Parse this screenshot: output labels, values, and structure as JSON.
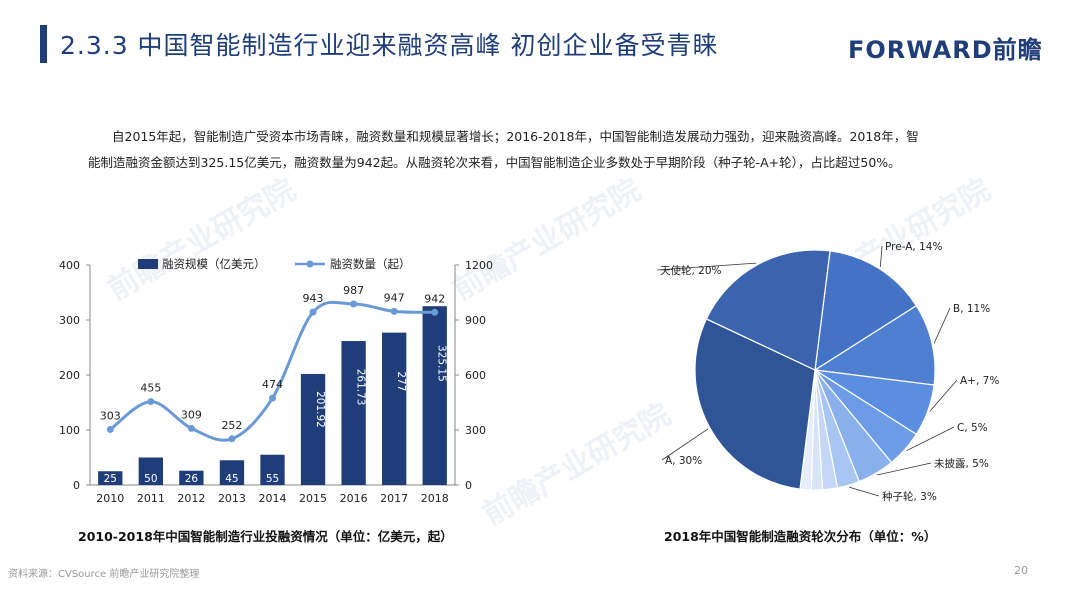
{
  "header": {
    "title": "2.3.3 中国智能制造行业迎来融资高峰 初创企业备受青睐",
    "logo": "FORWARD前瞻"
  },
  "intro": {
    "line1": "自2015年起，智能制造广受资本市场青睐，融资数量和规模显著增长；2016-2018年，中国智能制造发展动力强劲，迎来融资高峰。2018年，智",
    "line2": "能制造融资金额达到325.15亿美元，融资数量为942起。从融资轮次来看，中国智能制造企业多数处于早期阶段（种子轮-A+轮），占比超过50%。"
  },
  "watermark": "前瞻产业研究院",
  "captions": {
    "left": "2010-2018年中国智能制造行业投融资情况（单位：亿美元，起）",
    "right": "2018年中国智能制造融资轮次分布（单位：%）"
  },
  "footer": {
    "source": "资料来源：CVSource 前瞻产业研究院整理",
    "page": "20"
  },
  "colors": {
    "accent": "#1f3e79",
    "bar": "#1f3e79",
    "line": "#6a9ad6"
  },
  "chart_data": [
    {
      "type": "bar",
      "categories": [
        "2010",
        "2011",
        "2012",
        "2013",
        "2014",
        "2015",
        "2016",
        "2017",
        "2018"
      ],
      "series": [
        {
          "name": "融资规模（亿美元）",
          "type": "bar",
          "axis": "left",
          "values": [
            25,
            50,
            26,
            45,
            55,
            201.92,
            261.73,
            277,
            325.15
          ],
          "labels": [
            "25",
            "50",
            "26",
            "45",
            "55",
            "201.92",
            "261.73",
            "277",
            "325.15"
          ]
        },
        {
          "name": "融资数量（起）",
          "type": "line",
          "axis": "right",
          "values": [
            303,
            455,
            309,
            252,
            474,
            943,
            987,
            947,
            942
          ],
          "labels": [
            "303",
            "455",
            "309",
            "252",
            "474",
            "943",
            "987",
            "947",
            "942"
          ]
        }
      ],
      "y_left": {
        "ylim": [
          0,
          400
        ],
        "ticks": [
          "0",
          "100",
          "200",
          "300",
          "400"
        ]
      },
      "y_right": {
        "ylim": [
          0,
          1200
        ],
        "ticks": [
          "0",
          "300",
          "600",
          "900",
          "1200"
        ]
      },
      "legend": "top",
      "grid": false
    },
    {
      "type": "pie",
      "slices": [
        {
          "label": "Pre-A, 14%",
          "value": 14,
          "color": "#4472c4"
        },
        {
          "label": "B, 11%",
          "value": 11,
          "color": "#4f7fd0"
        },
        {
          "label": "A+, 7%",
          "value": 7,
          "color": "#5b8ee0"
        },
        {
          "label": "C, 5%",
          "value": 5,
          "color": "#6d9ce6"
        },
        {
          "label": "未披露, 5%",
          "value": 5,
          "color": "#8ab0ec"
        },
        {
          "label": "种子轮, 3%",
          "value": 3,
          "color": "#a9c5f2"
        },
        {
          "label": "",
          "value": 2,
          "color": "#c4d7f6"
        },
        {
          "label": "",
          "value": 1.5,
          "color": "#d8e4f8"
        },
        {
          "label": "",
          "value": 1.5,
          "color": "#e6eefb"
        },
        {
          "label": "A, 30%",
          "value": 30,
          "color": "#2f5597"
        },
        {
          "label": "天使轮, 20%",
          "value": 20,
          "color": "#3b63ae"
        }
      ]
    }
  ]
}
